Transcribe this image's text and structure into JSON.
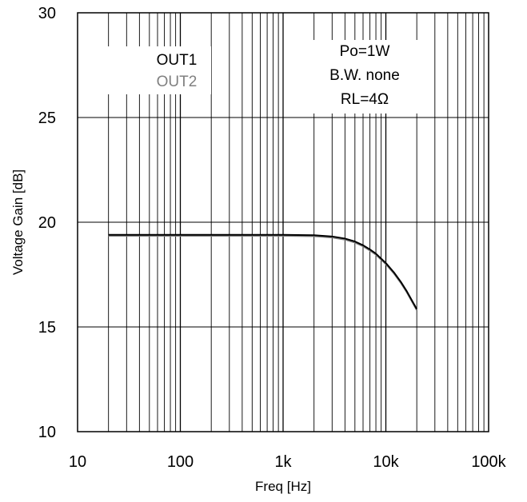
{
  "chart_data": {
    "type": "line",
    "title": "",
    "xlabel": "Freq [Hz]",
    "ylabel": "Voltage Gain [dB]",
    "x_scale": "log",
    "xlim": [
      10,
      100000
    ],
    "ylim": [
      10,
      30
    ],
    "x_ticks": [
      10,
      100,
      1000,
      10000,
      100000
    ],
    "x_tick_labels": [
      "10",
      "100",
      "1k",
      "10k",
      "100k"
    ],
    "y_ticks": [
      10,
      15,
      20,
      25,
      30
    ],
    "y_tick_labels": [
      "10",
      "15",
      "20",
      "25",
      "30"
    ],
    "grid": true,
    "legend": {
      "placement": "top-left",
      "entries": [
        "OUT1",
        "OUT2"
      ]
    },
    "annotation": {
      "placement": "top-right",
      "lines": [
        "Po=1W",
        "B.W. none",
        "RL=4Ω"
      ]
    },
    "series": [
      {
        "name": "OUT1",
        "color": "#000000",
        "x": [
          20,
          50,
          100,
          200,
          500,
          1000,
          2000,
          3000,
          4000,
          5000,
          6000,
          7000,
          8000,
          10000,
          12000,
          14000,
          16000,
          18000,
          20000
        ],
        "y": [
          19.4,
          19.4,
          19.4,
          19.4,
          19.4,
          19.4,
          19.38,
          19.32,
          19.22,
          19.08,
          18.9,
          18.7,
          18.5,
          18.05,
          17.6,
          17.15,
          16.7,
          16.25,
          15.85
        ]
      },
      {
        "name": "OUT2",
        "color": "#808080",
        "x": [
          20,
          50,
          100,
          200,
          500,
          1000,
          2000,
          3000,
          4000,
          5000,
          6000,
          7000,
          8000,
          10000,
          12000,
          14000,
          16000,
          18000,
          20000
        ],
        "y": [
          19.35,
          19.35,
          19.35,
          19.35,
          19.35,
          19.35,
          19.33,
          19.27,
          19.17,
          19.03,
          18.85,
          18.65,
          18.45,
          18.0,
          17.55,
          17.1,
          16.65,
          16.2,
          15.8
        ]
      }
    ]
  }
}
